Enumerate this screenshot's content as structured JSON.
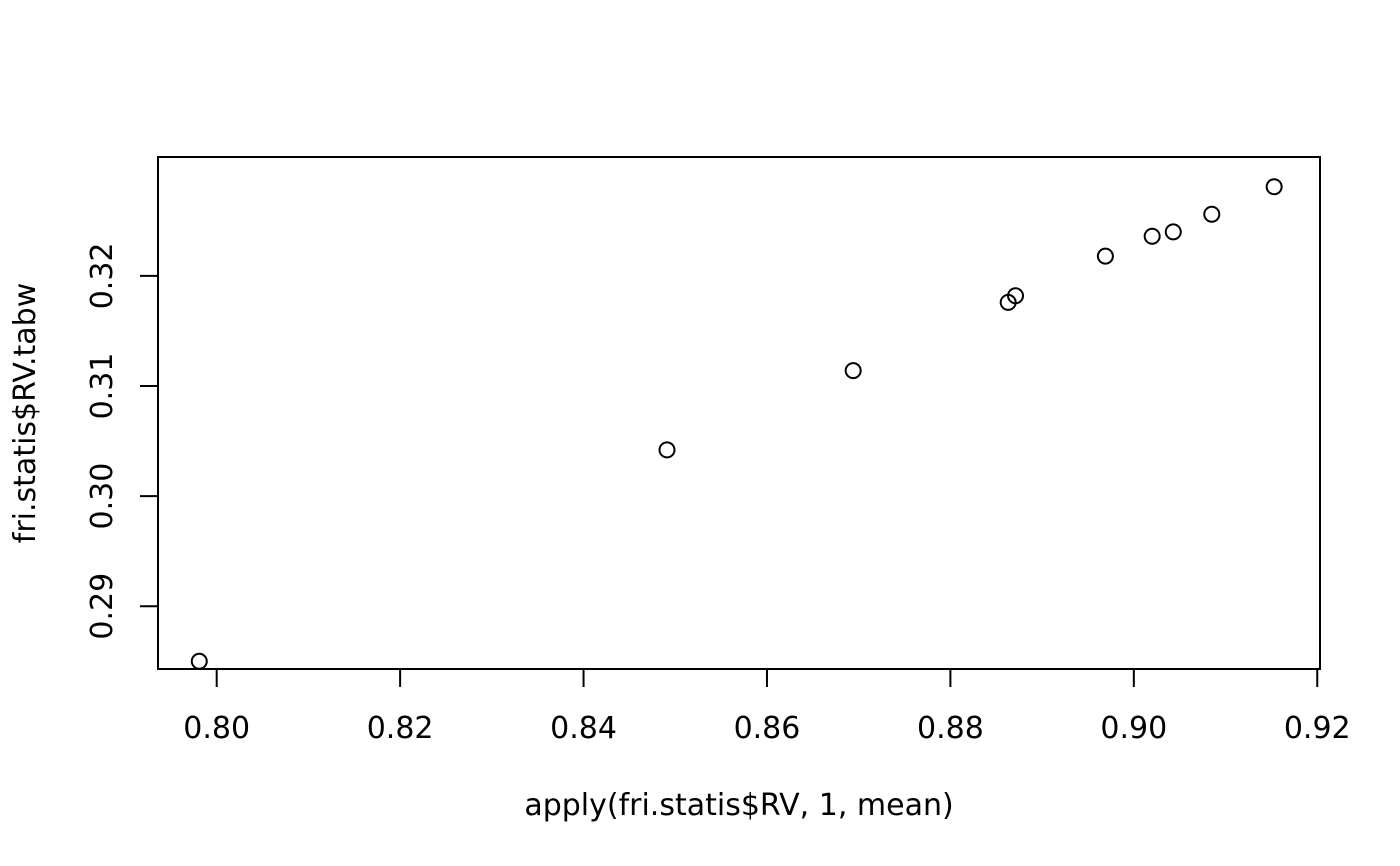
{
  "chart_data": {
    "type": "scatter",
    "title": "",
    "xlabel": "apply(fri.statis$RV, 1, mean)",
    "ylabel": "fri.statis$RV.tabw",
    "xlim": [
      0.7936,
      0.9203
    ],
    "ylim": [
      0.2843,
      0.3308
    ],
    "x_ticks": [
      0.8,
      0.82,
      0.84,
      0.86,
      0.88,
      0.9,
      0.92
    ],
    "x_tick_labels": [
      "0.80",
      "0.82",
      "0.84",
      "0.86",
      "0.88",
      "0.90",
      "0.92"
    ],
    "y_ticks": [
      0.29,
      0.3,
      0.31,
      0.32
    ],
    "y_tick_labels": [
      "0.29",
      "0.30",
      "0.31",
      "0.32"
    ],
    "grid": false,
    "legend": "none",
    "marker": "open-circle",
    "points": [
      {
        "x": 0.7981,
        "y": 0.285
      },
      {
        "x": 0.8491,
        "y": 0.3042
      },
      {
        "x": 0.8694,
        "y": 0.3114
      },
      {
        "x": 0.8863,
        "y": 0.3176
      },
      {
        "x": 0.8871,
        "y": 0.3182
      },
      {
        "x": 0.8969,
        "y": 0.3218
      },
      {
        "x": 0.902,
        "y": 0.3236
      },
      {
        "x": 0.9043,
        "y": 0.324
      },
      {
        "x": 0.9085,
        "y": 0.3256
      },
      {
        "x": 0.9153,
        "y": 0.3281
      }
    ]
  }
}
